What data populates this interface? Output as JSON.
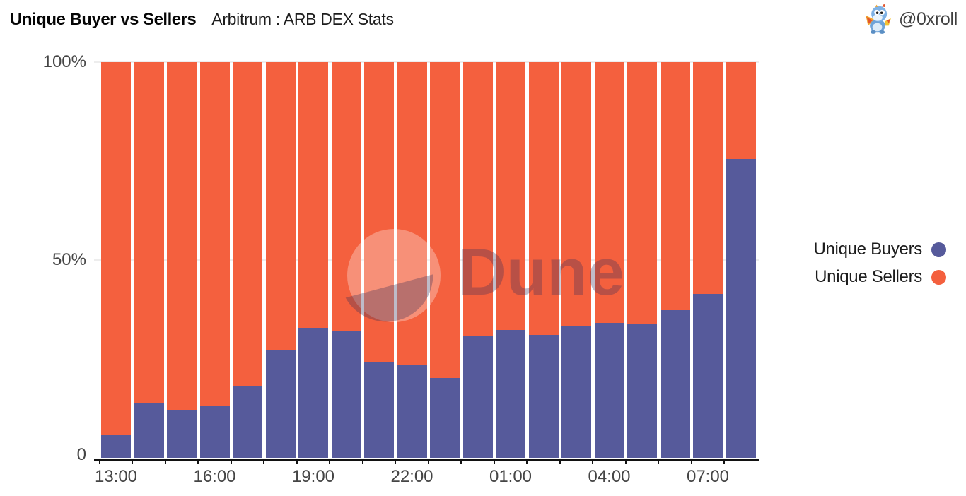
{
  "header": {
    "title": "Unique Buyer vs Sellers",
    "subtitle": "Arbitrum : ARB DEX Stats",
    "author": {
      "handle": "@0xroll",
      "avatar_icon": "dragon-avatar"
    }
  },
  "watermark": {
    "text": "Dune",
    "logo_icon": "dune-crescent-logo"
  },
  "legend": [
    {
      "label": "Unique Buyers",
      "color": "#565A9B"
    },
    {
      "label": "Unique Sellers",
      "color": "#F4603E"
    }
  ],
  "chart_data": {
    "type": "bar",
    "variant": "stacked-100-percent",
    "title": "Unique Buyer vs Sellers",
    "subtitle": "Arbitrum : ARB DEX Stats",
    "categories": [
      "13:00",
      "14:00",
      "15:00",
      "16:00",
      "17:00",
      "18:00",
      "19:00",
      "20:00",
      "21:00",
      "22:00",
      "23:00",
      "00:00",
      "01:00",
      "02:00",
      "03:00",
      "04:00",
      "05:00",
      "06:00",
      "07:00",
      "08:00"
    ],
    "series": [
      {
        "name": "Unique Buyers",
        "color": "#565A9B",
        "unit": "%",
        "values": [
          5.7,
          13.8,
          12.2,
          13.2,
          18.2,
          27.3,
          32.9,
          32.0,
          24.3,
          23.4,
          20.2,
          30.7,
          32.3,
          31.1,
          33.2,
          34.1,
          33.9,
          37.3,
          41.4,
          75.5
        ]
      },
      {
        "name": "Unique Sellers",
        "color": "#F4603E",
        "unit": "%",
        "values": [
          94.3,
          86.2,
          87.8,
          86.8,
          81.8,
          72.7,
          67.1,
          68.0,
          75.7,
          76.6,
          79.8,
          69.3,
          67.7,
          68.9,
          66.8,
          65.9,
          66.1,
          62.7,
          58.6,
          24.5
        ]
      }
    ],
    "x_axis": {
      "tick_labels": [
        "13:00",
        "16:00",
        "19:00",
        "22:00",
        "01:00",
        "04:00",
        "07:00"
      ],
      "label_every_n_bars": 3
    },
    "y_axis": {
      "tick_labels": [
        "100%",
        "50%",
        "0"
      ],
      "range": [
        0,
        100
      ],
      "unit": "%"
    },
    "grid": {
      "horizontal_lines_at": [
        50,
        100
      ],
      "color": "#EDEDED"
    },
    "legend_position": "right",
    "colors": {
      "background": "#FFFFFF",
      "axis_line": "#121212",
      "tick_text": "#454545"
    }
  }
}
